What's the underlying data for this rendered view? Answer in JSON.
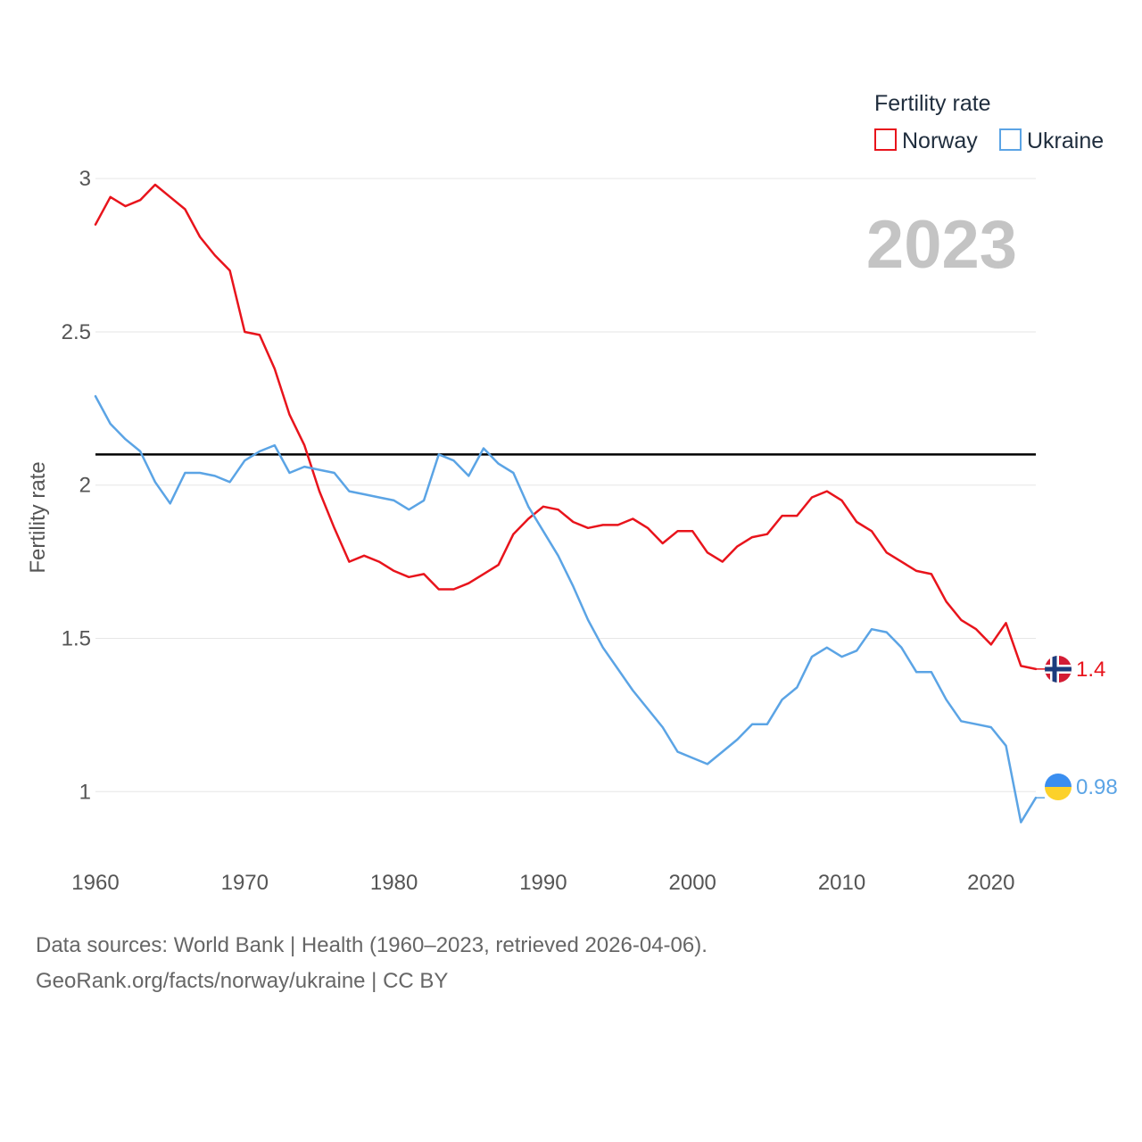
{
  "chart_data": {
    "type": "line",
    "title": "",
    "ylabel": "Fertility rate",
    "xlabel": "",
    "xlim": [
      1960,
      2023
    ],
    "ylim": [
      0.8,
      3.05
    ],
    "yticks": [
      1,
      1.5,
      2,
      2.5,
      3
    ],
    "ytick_labels": [
      "1",
      "1.5",
      "2",
      "2.5",
      "3"
    ],
    "xticks": [
      1960,
      1970,
      1980,
      1990,
      2000,
      2010,
      2020
    ],
    "xtick_labels": [
      "1960",
      "1970",
      "1980",
      "1990",
      "2000",
      "2010",
      "2020"
    ],
    "grid": true,
    "reference_line": 2.1,
    "year_label": "2023",
    "legend": {
      "title": "Fertility rate",
      "position": "top-right"
    },
    "x": [
      1960,
      1961,
      1962,
      1963,
      1964,
      1965,
      1966,
      1967,
      1968,
      1969,
      1970,
      1971,
      1972,
      1973,
      1974,
      1975,
      1976,
      1977,
      1978,
      1979,
      1980,
      1981,
      1982,
      1983,
      1984,
      1985,
      1986,
      1987,
      1988,
      1989,
      1990,
      1991,
      1992,
      1993,
      1994,
      1995,
      1996,
      1997,
      1998,
      1999,
      2000,
      2001,
      2002,
      2003,
      2004,
      2005,
      2006,
      2007,
      2008,
      2009,
      2010,
      2011,
      2012,
      2013,
      2014,
      2015,
      2016,
      2017,
      2018,
      2019,
      2020,
      2021,
      2022,
      2023
    ],
    "series": [
      {
        "name": "Norway",
        "color": "#e8141c",
        "end_label": "1.4",
        "values": [
          2.85,
          2.94,
          2.91,
          2.93,
          2.98,
          2.94,
          2.9,
          2.81,
          2.75,
          2.7,
          2.5,
          2.49,
          2.38,
          2.23,
          2.13,
          1.98,
          1.86,
          1.75,
          1.77,
          1.75,
          1.72,
          1.7,
          1.71,
          1.66,
          1.66,
          1.68,
          1.71,
          1.74,
          1.84,
          1.89,
          1.93,
          1.92,
          1.88,
          1.86,
          1.87,
          1.87,
          1.89,
          1.86,
          1.81,
          1.85,
          1.85,
          1.78,
          1.75,
          1.8,
          1.83,
          1.84,
          1.9,
          1.9,
          1.96,
          1.98,
          1.95,
          1.88,
          1.85,
          1.78,
          1.75,
          1.72,
          1.71,
          1.62,
          1.56,
          1.53,
          1.48,
          1.55,
          1.41,
          1.4
        ]
      },
      {
        "name": "Ukraine",
        "color": "#5ba4e5",
        "end_label": "0.98",
        "values": [
          2.29,
          2.2,
          2.15,
          2.11,
          2.01,
          1.94,
          2.04,
          2.04,
          2.03,
          2.01,
          2.08,
          2.11,
          2.13,
          2.04,
          2.06,
          2.05,
          2.04,
          1.98,
          1.97,
          1.96,
          1.95,
          1.92,
          1.95,
          2.1,
          2.08,
          2.03,
          2.12,
          2.07,
          2.04,
          1.93,
          1.85,
          1.77,
          1.67,
          1.56,
          1.47,
          1.4,
          1.33,
          1.27,
          1.21,
          1.13,
          1.11,
          1.09,
          1.13,
          1.17,
          1.22,
          1.22,
          1.3,
          1.34,
          1.44,
          1.47,
          1.44,
          1.46,
          1.53,
          1.52,
          1.47,
          1.39,
          1.39,
          1.3,
          1.23,
          1.22,
          1.21,
          1.15,
          0.9,
          0.98
        ]
      }
    ]
  },
  "footer": {
    "line1": "Data sources: World Bank | Health (1960–2023, retrieved 2026-04-06).",
    "line2": "GeoRank.org/facts/norway/ukraine | CC BY"
  }
}
